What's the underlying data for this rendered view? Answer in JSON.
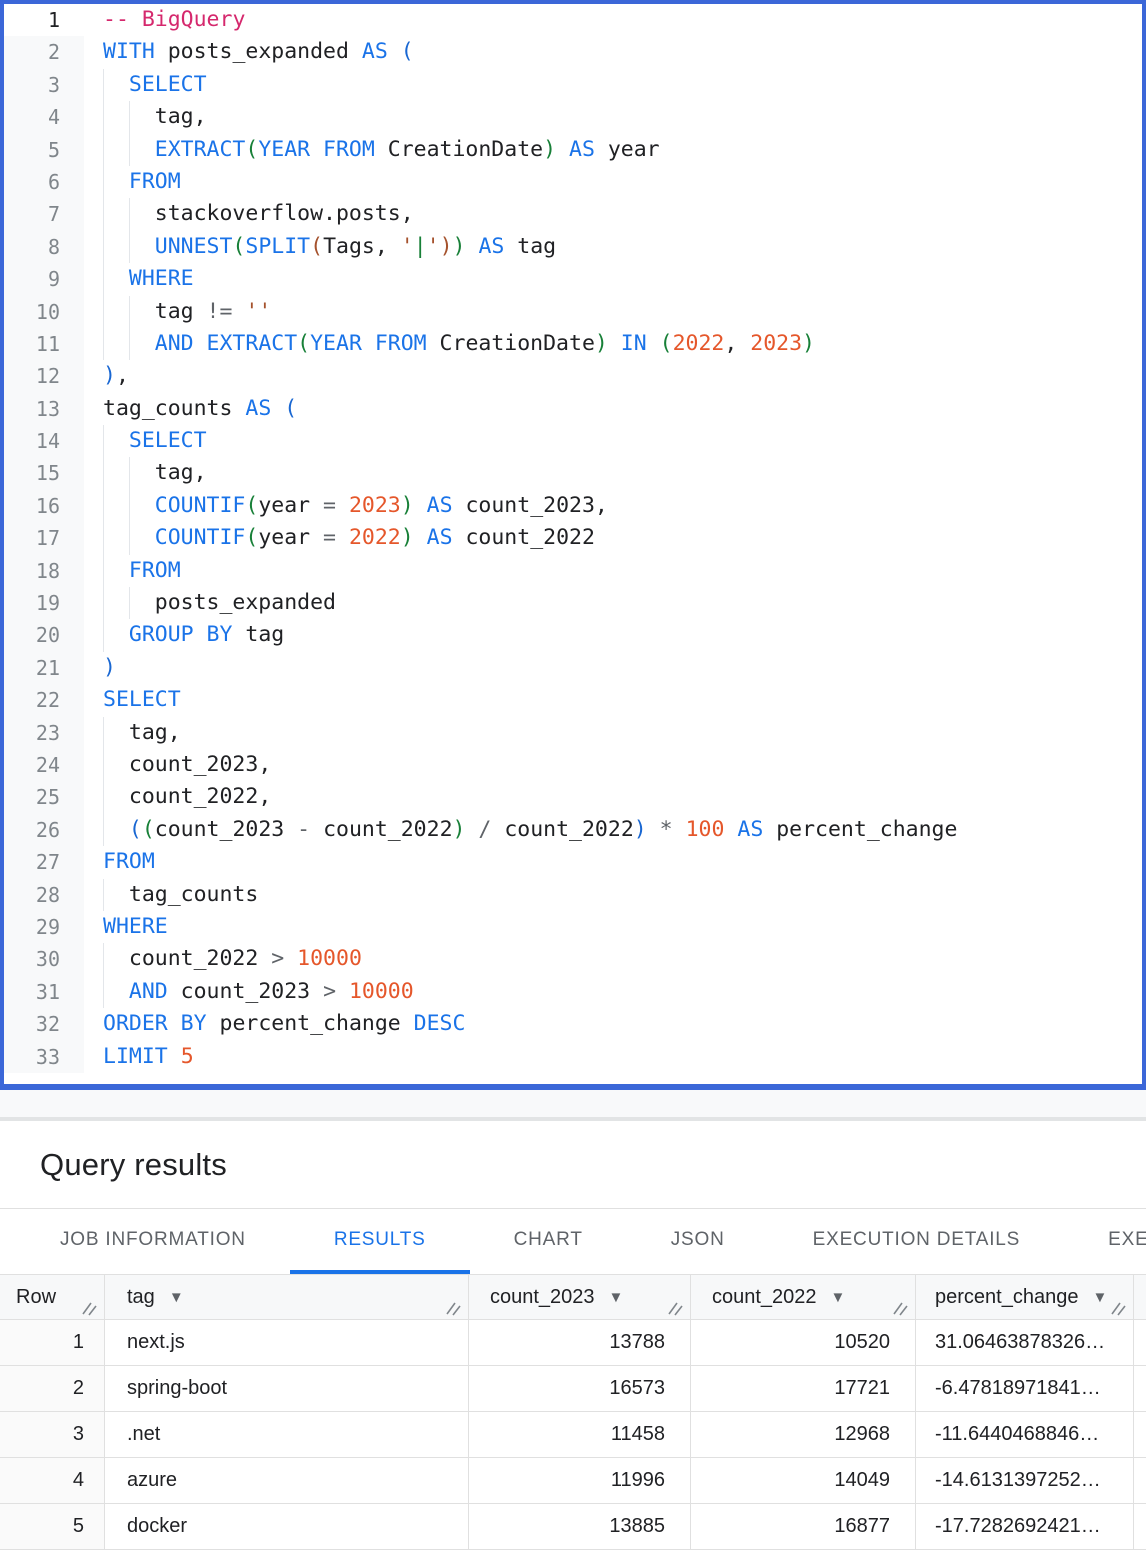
{
  "colors": {
    "focus_border": "#3b67d8",
    "keyword_blue": "#1a73e8",
    "identifier_black": "#202124",
    "comment_pink": "#d5286d",
    "number_orange": "#e5572b",
    "paren_green": "#188038",
    "paren_brown": "#a5522d",
    "operator_gray": "#5f6368",
    "line_number_gray": "#80868b",
    "active_tab_blue": "#1a73e8",
    "tab_gray": "#5f6368",
    "grid_border": "#e0e0e0"
  },
  "icons": {
    "column_menu": "▼",
    "column_resize": "double-diagonal-lines"
  },
  "editor": {
    "active_line": 1,
    "lines": [
      {
        "n": 1,
        "g": 0,
        "t": [
          [
            "-- BigQuery",
            "com"
          ]
        ]
      },
      {
        "n": 2,
        "g": 0,
        "t": [
          [
            "WITH",
            "kw"
          ],
          [
            " posts_expanded ",
            "id"
          ],
          [
            "AS",
            "kw"
          ],
          [
            " ",
            "id"
          ],
          [
            "(",
            "p1"
          ]
        ]
      },
      {
        "n": 3,
        "g": 1,
        "t": [
          [
            "SELECT",
            "kw"
          ]
        ]
      },
      {
        "n": 4,
        "g": 2,
        "t": [
          [
            "tag,",
            "id"
          ]
        ]
      },
      {
        "n": 5,
        "g": 2,
        "t": [
          [
            "EXTRACT",
            "kw"
          ],
          [
            "(",
            "p2"
          ],
          [
            "YEAR FROM",
            "kw"
          ],
          [
            " CreationDate",
            "id"
          ],
          [
            ")",
            "p2"
          ],
          [
            " ",
            "id"
          ],
          [
            "AS",
            "kw"
          ],
          [
            " year",
            "id"
          ]
        ]
      },
      {
        "n": 6,
        "g": 1,
        "t": [
          [
            "FROM",
            "kw"
          ]
        ]
      },
      {
        "n": 7,
        "g": 2,
        "t": [
          [
            "stackoverflow.posts,",
            "id"
          ]
        ]
      },
      {
        "n": 8,
        "g": 2,
        "t": [
          [
            "UNNEST",
            "kw"
          ],
          [
            "(",
            "p2"
          ],
          [
            "SPLIT",
            "kw"
          ],
          [
            "(",
            "p3"
          ],
          [
            "Tags, ",
            "id"
          ],
          [
            "'",
            "str"
          ],
          [
            "|",
            "strc"
          ],
          [
            "'",
            "str"
          ],
          [
            ")",
            "p3"
          ],
          [
            ")",
            "p2"
          ],
          [
            " ",
            "id"
          ],
          [
            "AS",
            "kw"
          ],
          [
            " tag",
            "id"
          ]
        ]
      },
      {
        "n": 9,
        "g": 1,
        "t": [
          [
            "WHERE",
            "kw"
          ]
        ]
      },
      {
        "n": 10,
        "g": 2,
        "t": [
          [
            "tag ",
            "id"
          ],
          [
            "!=",
            "op"
          ],
          [
            " ",
            "id"
          ],
          [
            "''",
            "str"
          ]
        ]
      },
      {
        "n": 11,
        "g": 2,
        "t": [
          [
            "AND",
            "kw"
          ],
          [
            " ",
            "id"
          ],
          [
            "EXTRACT",
            "kw"
          ],
          [
            "(",
            "p2"
          ],
          [
            "YEAR FROM",
            "kw"
          ],
          [
            " CreationDate",
            "id"
          ],
          [
            ")",
            "p2"
          ],
          [
            " ",
            "id"
          ],
          [
            "IN",
            "kw"
          ],
          [
            " ",
            "id"
          ],
          [
            "(",
            "p2"
          ],
          [
            "2022",
            "num"
          ],
          [
            ", ",
            "id"
          ],
          [
            "2023",
            "num"
          ],
          [
            ")",
            "p2"
          ]
        ]
      },
      {
        "n": 12,
        "g": 0,
        "t": [
          [
            ")",
            "p1"
          ],
          [
            ",",
            "id"
          ]
        ]
      },
      {
        "n": 13,
        "g": 0,
        "t": [
          [
            "tag_counts ",
            "id"
          ],
          [
            "AS",
            "kw"
          ],
          [
            " ",
            "id"
          ],
          [
            "(",
            "p1"
          ]
        ]
      },
      {
        "n": 14,
        "g": 1,
        "t": [
          [
            "SELECT",
            "kw"
          ]
        ]
      },
      {
        "n": 15,
        "g": 2,
        "t": [
          [
            "tag,",
            "id"
          ]
        ]
      },
      {
        "n": 16,
        "g": 2,
        "t": [
          [
            "COUNTIF",
            "kw"
          ],
          [
            "(",
            "p2"
          ],
          [
            "year ",
            "id"
          ],
          [
            "=",
            "op"
          ],
          [
            " ",
            "id"
          ],
          [
            "2023",
            "num"
          ],
          [
            ")",
            "p2"
          ],
          [
            " ",
            "id"
          ],
          [
            "AS",
            "kw"
          ],
          [
            " count_2023,",
            "id"
          ]
        ]
      },
      {
        "n": 17,
        "g": 2,
        "t": [
          [
            "COUNTIF",
            "kw"
          ],
          [
            "(",
            "p2"
          ],
          [
            "year ",
            "id"
          ],
          [
            "=",
            "op"
          ],
          [
            " ",
            "id"
          ],
          [
            "2022",
            "num"
          ],
          [
            ")",
            "p2"
          ],
          [
            " ",
            "id"
          ],
          [
            "AS",
            "kw"
          ],
          [
            " count_2022",
            "id"
          ]
        ]
      },
      {
        "n": 18,
        "g": 1,
        "t": [
          [
            "FROM",
            "kw"
          ]
        ]
      },
      {
        "n": 19,
        "g": 2,
        "t": [
          [
            "posts_expanded",
            "id"
          ]
        ]
      },
      {
        "n": 20,
        "g": 1,
        "t": [
          [
            "GROUP BY",
            "kw"
          ],
          [
            " tag",
            "id"
          ]
        ]
      },
      {
        "n": 21,
        "g": 0,
        "t": [
          [
            ")",
            "p1"
          ]
        ]
      },
      {
        "n": 22,
        "g": 0,
        "t": [
          [
            "SELECT",
            "kw"
          ]
        ]
      },
      {
        "n": 23,
        "g": 1,
        "t": [
          [
            "tag,",
            "id"
          ]
        ]
      },
      {
        "n": 24,
        "g": 1,
        "t": [
          [
            "count_2023,",
            "id"
          ]
        ]
      },
      {
        "n": 25,
        "g": 1,
        "t": [
          [
            "count_2022,",
            "id"
          ]
        ]
      },
      {
        "n": 26,
        "g": 1,
        "t": [
          [
            "(",
            "p1"
          ],
          [
            "(",
            "p2"
          ],
          [
            "count_2023 ",
            "id"
          ],
          [
            "-",
            "op"
          ],
          [
            " count_2022",
            "id"
          ],
          [
            ")",
            "p2"
          ],
          [
            " ",
            "id"
          ],
          [
            "/",
            "op"
          ],
          [
            " count_2022",
            "id"
          ],
          [
            ")",
            "p1"
          ],
          [
            " ",
            "id"
          ],
          [
            "*",
            "op"
          ],
          [
            " ",
            "id"
          ],
          [
            "100",
            "num"
          ],
          [
            " ",
            "id"
          ],
          [
            "AS",
            "kw"
          ],
          [
            " percent_change",
            "id"
          ]
        ]
      },
      {
        "n": 27,
        "g": 0,
        "t": [
          [
            "FROM",
            "kw"
          ]
        ]
      },
      {
        "n": 28,
        "g": 1,
        "t": [
          [
            "tag_counts",
            "id"
          ]
        ]
      },
      {
        "n": 29,
        "g": 0,
        "t": [
          [
            "WHERE",
            "kw"
          ]
        ]
      },
      {
        "n": 30,
        "g": 1,
        "t": [
          [
            "count_2022 ",
            "id"
          ],
          [
            ">",
            "op"
          ],
          [
            " ",
            "id"
          ],
          [
            "10000",
            "num"
          ]
        ]
      },
      {
        "n": 31,
        "g": 1,
        "t": [
          [
            "AND",
            "kw"
          ],
          [
            " count_2023 ",
            "id"
          ],
          [
            ">",
            "op"
          ],
          [
            " ",
            "id"
          ],
          [
            "10000",
            "num"
          ]
        ]
      },
      {
        "n": 32,
        "g": 0,
        "t": [
          [
            "ORDER BY",
            "kw"
          ],
          [
            " percent_change ",
            "id"
          ],
          [
            "DESC",
            "kw"
          ]
        ]
      },
      {
        "n": 33,
        "g": 0,
        "t": [
          [
            "LIMIT",
            "kw"
          ],
          [
            " ",
            "id"
          ],
          [
            "5",
            "num"
          ]
        ]
      }
    ]
  },
  "results_panel": {
    "title": "Query results"
  },
  "tabs": [
    {
      "label": "JOB INFORMATION",
      "active": false
    },
    {
      "label": "RESULTS",
      "active": true
    },
    {
      "label": "CHART",
      "active": false
    },
    {
      "label": "JSON",
      "active": false
    },
    {
      "label": "EXECUTION DETAILS",
      "active": false
    },
    {
      "label": "EXECUTION GRAPH",
      "active": false,
      "clipped": true
    }
  ],
  "table": {
    "columns": [
      {
        "key": "row",
        "label": "Row",
        "sortable": false
      },
      {
        "key": "tag",
        "label": "tag",
        "sortable": true
      },
      {
        "key": "count_2023",
        "label": "count_2023",
        "sortable": true
      },
      {
        "key": "count_2022",
        "label": "count_2022",
        "sortable": true
      },
      {
        "key": "percent_change",
        "label": "percent_change",
        "sortable": true
      },
      {
        "key": "spacer",
        "label": "",
        "sortable": false
      }
    ],
    "rows": [
      {
        "row": "1",
        "tag": "next.js",
        "count_2023": "13788",
        "count_2022": "10520",
        "percent_change": "31.06463878326…",
        "spacer": ""
      },
      {
        "row": "2",
        "tag": "spring-boot",
        "count_2023": "16573",
        "count_2022": "17721",
        "percent_change": "-6.47818971841…",
        "spacer": ""
      },
      {
        "row": "3",
        "tag": ".net",
        "count_2023": "11458",
        "count_2022": "12968",
        "percent_change": "-11.6440468846…",
        "spacer": ""
      },
      {
        "row": "4",
        "tag": "azure",
        "count_2023": "11996",
        "count_2022": "14049",
        "percent_change": "-14.6131397252…",
        "spacer": ""
      },
      {
        "row": "5",
        "tag": "docker",
        "count_2023": "13885",
        "count_2022": "16877",
        "percent_change": "-17.7282692421…",
        "spacer": ""
      }
    ]
  }
}
